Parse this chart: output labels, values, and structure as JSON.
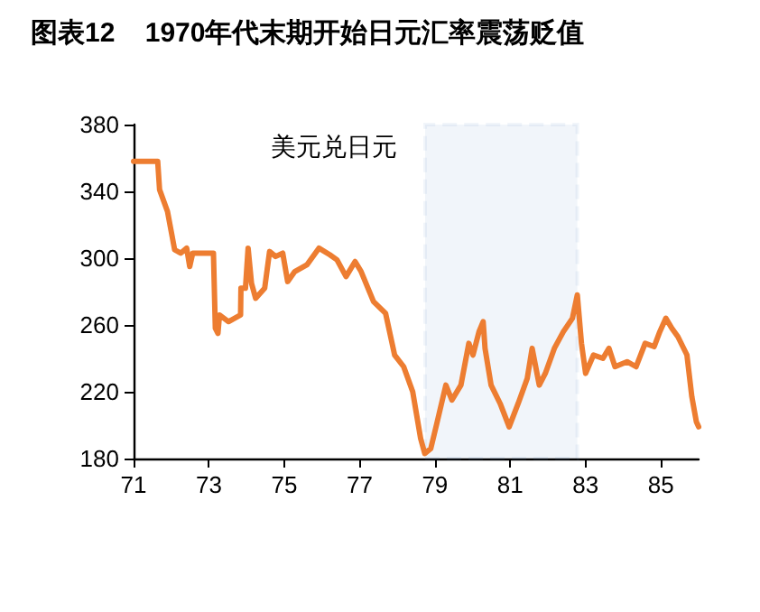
{
  "chart_data": {
    "type": "line",
    "title": "图表12    1970年代末期开始日元汇率震荡贬值",
    "annotations": [
      "美元兑日元"
    ],
    "xlim": [
      71,
      86
    ],
    "xticks": [
      71,
      73,
      75,
      77,
      79,
      81,
      83,
      85
    ],
    "ylim": [
      180,
      380
    ],
    "yticks": [
      180,
      220,
      260,
      300,
      340,
      380
    ],
    "grid": false,
    "marker": "none",
    "line_style": "solid",
    "bands": [
      {
        "axis": "x",
        "from": 78.74,
        "to": 82.78,
        "color": "#4f81bd"
      }
    ],
    "series": [
      {
        "color": "#ed7d31",
        "x": [
          71.0,
          71.64,
          71.69,
          71.9,
          72.09,
          72.25,
          72.41,
          72.49,
          72.57,
          73.12,
          73.17,
          73.24,
          73.28,
          73.52,
          73.84,
          73.85,
          73.97,
          74.04,
          74.13,
          74.24,
          74.48,
          74.61,
          74.77,
          74.96,
          75.09,
          75.28,
          75.6,
          75.92,
          76.21,
          76.4,
          76.64,
          76.88,
          77.04,
          77.37,
          77.69,
          77.93,
          78.17,
          78.41,
          78.62,
          78.73,
          78.89,
          79.05,
          79.29,
          79.45,
          79.69,
          79.9,
          80.01,
          80.17,
          80.28,
          80.33,
          80.49,
          80.73,
          80.97,
          81.21,
          81.45,
          81.58,
          81.77,
          81.93,
          82.17,
          82.41,
          82.65,
          82.78,
          82.89,
          83.0,
          83.21,
          83.46,
          83.62,
          83.78,
          84.1,
          84.34,
          84.58,
          84.82,
          84.97,
          85.13,
          85.29,
          85.45,
          85.69,
          85.82,
          85.94,
          86.0
        ],
        "values": [
          358,
          358,
          341,
          328,
          305,
          303,
          306,
          295,
          303,
          303,
          258,
          255,
          266,
          262,
          266,
          282,
          282,
          306,
          285,
          276,
          282,
          304,
          301,
          303,
          286,
          292,
          296,
          306,
          302,
          299,
          289,
          298,
          292,
          274,
          267,
          242,
          235,
          220,
          192,
          183,
          186,
          201,
          224,
          215,
          224,
          249,
          242,
          256,
          262,
          246,
          224,
          213,
          199,
          213,
          228,
          246,
          224,
          231,
          246,
          256,
          264,
          278,
          249,
          231,
          242,
          240,
          246,
          235,
          238,
          235,
          249,
          247,
          256,
          264,
          258,
          253,
          242,
          217,
          202,
          199
        ]
      }
    ]
  }
}
